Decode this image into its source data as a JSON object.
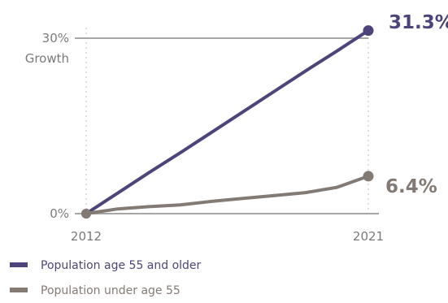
{
  "chart_data": {
    "type": "line",
    "x": [
      2012,
      2013,
      2014,
      2015,
      2016,
      2017,
      2018,
      2019,
      2020,
      2021
    ],
    "xlim": [
      2012,
      2021
    ],
    "ylim": [
      0,
      30
    ],
    "x_tick_labels": [
      "2012",
      "2021"
    ],
    "y_tick_labels": [
      "0%",
      "30%"
    ],
    "ylabel": "Growth",
    "grid": true,
    "legend_position": "bottom-left",
    "series": [
      {
        "name": "Population age 55 and older",
        "color": "#4f4479",
        "values": [
          0,
          3.5,
          7.0,
          10.4,
          13.9,
          17.4,
          20.9,
          24.4,
          27.8,
          31.3
        ],
        "end_label": "31.3%"
      },
      {
        "name": "Population under age 55",
        "color": "#847a74",
        "values": [
          0,
          0.8,
          1.2,
          1.5,
          2.1,
          2.6,
          3.1,
          3.6,
          4.5,
          6.4
        ],
        "end_label": "6.4%"
      }
    ]
  }
}
